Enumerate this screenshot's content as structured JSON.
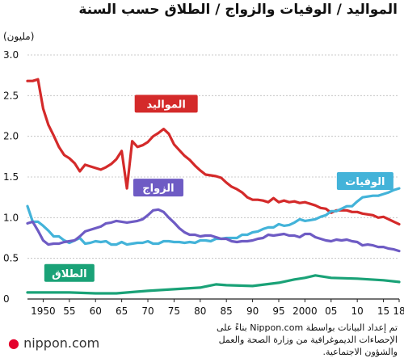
{
  "title": "المواليد / الوفيات والزواج / الطلاق حسب السنة",
  "source": "تم إعداد البيانات بواسطة Nippon.com بناءً على الإحصاءات الديموغرافية من وزارة الصحة والعمل والشؤون الاجتماعية.",
  "logo": {
    "prefix": "",
    "name": "nippon.com"
  },
  "colors": {
    "births": "#d42a2a",
    "deaths": "#43b3d9",
    "marriages": "#6e5bc4",
    "divorces": "#1aa277",
    "grid": "#bbbbbb"
  },
  "chart_data": {
    "type": "line",
    "ylabel": "(مليون)",
    "ylim": [
      0,
      3.0
    ],
    "yticks": [
      "0",
      "0.5",
      "1.0",
      "1.5",
      "2.0",
      "2.5",
      "3.0"
    ],
    "xlim": [
      1947,
      2018
    ],
    "xticks": [
      {
        "year": 1950,
        "label": "1950"
      },
      {
        "year": 1955,
        "label": "55"
      },
      {
        "year": 1960,
        "label": "60"
      },
      {
        "year": 1965,
        "label": "65"
      },
      {
        "year": 1970,
        "label": "70"
      },
      {
        "year": 1975,
        "label": "75"
      },
      {
        "year": 1980,
        "label": "80"
      },
      {
        "year": 1985,
        "label": "85"
      },
      {
        "year": 1990,
        "label": "90"
      },
      {
        "year": 1995,
        "label": "95"
      },
      {
        "year": 2000,
        "label": "2000"
      },
      {
        "year": 2005,
        "label": "05"
      },
      {
        "year": 2010,
        "label": "10"
      },
      {
        "year": 2015,
        "label": "15"
      },
      {
        "year": 2018,
        "label": "18"
      }
    ],
    "series": [
      {
        "key": "births",
        "name": "المواليد",
        "label_year": 1973.5,
        "label_value": 2.4,
        "x": [
          1947,
          1948,
          1949,
          1950,
          1951,
          1952,
          1953,
          1954,
          1955,
          1956,
          1957,
          1958,
          1959,
          1960,
          1961,
          1962,
          1963,
          1964,
          1965,
          1966,
          1967,
          1968,
          1969,
          1970,
          1971,
          1972,
          1973,
          1974,
          1975,
          1976,
          1977,
          1978,
          1979,
          1980,
          1981,
          1982,
          1983,
          1984,
          1985,
          1986,
          1987,
          1988,
          1989,
          1990,
          1991,
          1992,
          1993,
          1994,
          1995,
          1996,
          1997,
          1998,
          1999,
          2000,
          2001,
          2002,
          2003,
          2004,
          2005,
          2006,
          2007,
          2008,
          2009,
          2010,
          2011,
          2012,
          2013,
          2014,
          2015,
          2016,
          2017,
          2018
        ],
        "values": [
          2.68,
          2.68,
          2.7,
          2.34,
          2.14,
          2.01,
          1.87,
          1.77,
          1.73,
          1.67,
          1.57,
          1.65,
          1.63,
          1.61,
          1.59,
          1.62,
          1.66,
          1.72,
          1.82,
          1.36,
          1.94,
          1.87,
          1.89,
          1.93,
          2.0,
          2.04,
          2.09,
          2.03,
          1.9,
          1.83,
          1.76,
          1.71,
          1.64,
          1.58,
          1.53,
          1.52,
          1.51,
          1.49,
          1.43,
          1.38,
          1.35,
          1.31,
          1.25,
          1.22,
          1.22,
          1.21,
          1.19,
          1.24,
          1.19,
          1.21,
          1.19,
          1.2,
          1.18,
          1.19,
          1.17,
          1.15,
          1.12,
          1.11,
          1.06,
          1.09,
          1.09,
          1.09,
          1.07,
          1.07,
          1.05,
          1.04,
          1.03,
          1.0,
          1.01,
          0.98,
          0.95,
          0.92
        ]
      },
      {
        "key": "deaths",
        "name": "الوفيات",
        "label_year": 2011.5,
        "label_value": 1.45,
        "x": [
          1947,
          1948,
          1949,
          1950,
          1951,
          1952,
          1953,
          1954,
          1955,
          1956,
          1957,
          1958,
          1959,
          1960,
          1961,
          1962,
          1963,
          1964,
          1965,
          1966,
          1967,
          1968,
          1969,
          1970,
          1971,
          1972,
          1973,
          1974,
          1975,
          1976,
          1977,
          1978,
          1979,
          1980,
          1981,
          1982,
          1983,
          1984,
          1985,
          1986,
          1987,
          1988,
          1989,
          1990,
          1991,
          1992,
          1993,
          1994,
          1995,
          1996,
          1997,
          1998,
          1999,
          2000,
          2001,
          2002,
          2003,
          2004,
          2005,
          2006,
          2007,
          2008,
          2009,
          2010,
          2011,
          2012,
          2013,
          2014,
          2015,
          2016,
          2017,
          2018
        ],
        "values": [
          1.14,
          0.95,
          0.95,
          0.9,
          0.84,
          0.77,
          0.77,
          0.72,
          0.69,
          0.72,
          0.75,
          0.68,
          0.69,
          0.71,
          0.7,
          0.71,
          0.67,
          0.67,
          0.7,
          0.67,
          0.68,
          0.69,
          0.69,
          0.71,
          0.68,
          0.68,
          0.71,
          0.71,
          0.7,
          0.7,
          0.69,
          0.7,
          0.69,
          0.72,
          0.72,
          0.71,
          0.74,
          0.74,
          0.75,
          0.75,
          0.75,
          0.79,
          0.79,
          0.82,
          0.83,
          0.86,
          0.88,
          0.88,
          0.92,
          0.9,
          0.91,
          0.94,
          0.98,
          0.96,
          0.97,
          0.98,
          1.01,
          1.03,
          1.08,
          1.08,
          1.11,
          1.14,
          1.14,
          1.2,
          1.25,
          1.26,
          1.27,
          1.27,
          1.29,
          1.31,
          1.34,
          1.36
        ]
      },
      {
        "key": "marriages",
        "name": "الزواج",
        "label_year": 1972,
        "label_value": 1.37,
        "x": [
          1947,
          1948,
          1949,
          1950,
          1951,
          1952,
          1953,
          1954,
          1955,
          1956,
          1957,
          1958,
          1959,
          1960,
          1961,
          1962,
          1963,
          1964,
          1965,
          1966,
          1967,
          1968,
          1969,
          1970,
          1971,
          1972,
          1973,
          1974,
          1975,
          1976,
          1977,
          1978,
          1979,
          1980,
          1981,
          1982,
          1983,
          1984,
          1985,
          1986,
          1987,
          1988,
          1989,
          1990,
          1991,
          1992,
          1993,
          1994,
          1995,
          1996,
          1997,
          1998,
          1999,
          2000,
          2001,
          2002,
          2003,
          2004,
          2005,
          2006,
          2007,
          2008,
          2009,
          2010,
          2011,
          2012,
          2013,
          2014,
          2015,
          2016,
          2017,
          2018
        ],
        "values": [
          0.93,
          0.95,
          0.84,
          0.72,
          0.67,
          0.68,
          0.68,
          0.7,
          0.71,
          0.72,
          0.77,
          0.83,
          0.85,
          0.87,
          0.89,
          0.93,
          0.94,
          0.96,
          0.95,
          0.94,
          0.95,
          0.96,
          0.98,
          1.03,
          1.09,
          1.1,
          1.07,
          1.0,
          0.94,
          0.87,
          0.82,
          0.79,
          0.79,
          0.77,
          0.78,
          0.78,
          0.76,
          0.74,
          0.74,
          0.71,
          0.7,
          0.71,
          0.71,
          0.72,
          0.74,
          0.75,
          0.79,
          0.78,
          0.79,
          0.8,
          0.78,
          0.78,
          0.76,
          0.8,
          0.8,
          0.76,
          0.74,
          0.72,
          0.71,
          0.73,
          0.72,
          0.73,
          0.71,
          0.7,
          0.66,
          0.67,
          0.66,
          0.64,
          0.64,
          0.62,
          0.61,
          0.59
        ]
      },
      {
        "key": "divorces",
        "name": "الطلاق",
        "label_year": 1955,
        "label_value": 0.32,
        "x": [
          1947,
          1950,
          1955,
          1960,
          1964,
          1968,
          1970,
          1975,
          1980,
          1983,
          1985,
          1990,
          1995,
          1998,
          2000,
          2002,
          2005,
          2010,
          2015,
          2018
        ],
        "values": [
          0.08,
          0.08,
          0.08,
          0.07,
          0.07,
          0.09,
          0.1,
          0.12,
          0.14,
          0.18,
          0.17,
          0.16,
          0.2,
          0.24,
          0.26,
          0.29,
          0.26,
          0.25,
          0.23,
          0.21
        ]
      }
    ]
  }
}
